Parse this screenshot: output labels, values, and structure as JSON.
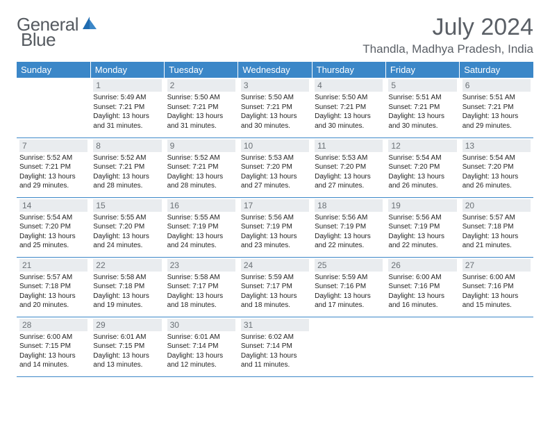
{
  "brand": {
    "name_a": "General",
    "name_b": "Blue"
  },
  "month_title": "July 2024",
  "location": "Thandla, Madhya Pradesh, India",
  "headers": [
    "Sunday",
    "Monday",
    "Tuesday",
    "Wednesday",
    "Thursday",
    "Friday",
    "Saturday"
  ],
  "header_bg": "#3b87c8",
  "weeks": [
    [
      null,
      {
        "day": "1",
        "sunrise": "5:49 AM",
        "sunset": "7:21 PM",
        "daylight": "13 hours and 31 minutes."
      },
      {
        "day": "2",
        "sunrise": "5:50 AM",
        "sunset": "7:21 PM",
        "daylight": "13 hours and 31 minutes."
      },
      {
        "day": "3",
        "sunrise": "5:50 AM",
        "sunset": "7:21 PM",
        "daylight": "13 hours and 30 minutes."
      },
      {
        "day": "4",
        "sunrise": "5:50 AM",
        "sunset": "7:21 PM",
        "daylight": "13 hours and 30 minutes."
      },
      {
        "day": "5",
        "sunrise": "5:51 AM",
        "sunset": "7:21 PM",
        "daylight": "13 hours and 30 minutes."
      },
      {
        "day": "6",
        "sunrise": "5:51 AM",
        "sunset": "7:21 PM",
        "daylight": "13 hours and 29 minutes."
      }
    ],
    [
      {
        "day": "7",
        "sunrise": "5:52 AM",
        "sunset": "7:21 PM",
        "daylight": "13 hours and 29 minutes."
      },
      {
        "day": "8",
        "sunrise": "5:52 AM",
        "sunset": "7:21 PM",
        "daylight": "13 hours and 28 minutes."
      },
      {
        "day": "9",
        "sunrise": "5:52 AM",
        "sunset": "7:21 PM",
        "daylight": "13 hours and 28 minutes."
      },
      {
        "day": "10",
        "sunrise": "5:53 AM",
        "sunset": "7:20 PM",
        "daylight": "13 hours and 27 minutes."
      },
      {
        "day": "11",
        "sunrise": "5:53 AM",
        "sunset": "7:20 PM",
        "daylight": "13 hours and 27 minutes."
      },
      {
        "day": "12",
        "sunrise": "5:54 AM",
        "sunset": "7:20 PM",
        "daylight": "13 hours and 26 minutes."
      },
      {
        "day": "13",
        "sunrise": "5:54 AM",
        "sunset": "7:20 PM",
        "daylight": "13 hours and 26 minutes."
      }
    ],
    [
      {
        "day": "14",
        "sunrise": "5:54 AM",
        "sunset": "7:20 PM",
        "daylight": "13 hours and 25 minutes."
      },
      {
        "day": "15",
        "sunrise": "5:55 AM",
        "sunset": "7:20 PM",
        "daylight": "13 hours and 24 minutes."
      },
      {
        "day": "16",
        "sunrise": "5:55 AM",
        "sunset": "7:19 PM",
        "daylight": "13 hours and 24 minutes."
      },
      {
        "day": "17",
        "sunrise": "5:56 AM",
        "sunset": "7:19 PM",
        "daylight": "13 hours and 23 minutes."
      },
      {
        "day": "18",
        "sunrise": "5:56 AM",
        "sunset": "7:19 PM",
        "daylight": "13 hours and 22 minutes."
      },
      {
        "day": "19",
        "sunrise": "5:56 AM",
        "sunset": "7:19 PM",
        "daylight": "13 hours and 22 minutes."
      },
      {
        "day": "20",
        "sunrise": "5:57 AM",
        "sunset": "7:18 PM",
        "daylight": "13 hours and 21 minutes."
      }
    ],
    [
      {
        "day": "21",
        "sunrise": "5:57 AM",
        "sunset": "7:18 PM",
        "daylight": "13 hours and 20 minutes."
      },
      {
        "day": "22",
        "sunrise": "5:58 AM",
        "sunset": "7:18 PM",
        "daylight": "13 hours and 19 minutes."
      },
      {
        "day": "23",
        "sunrise": "5:58 AM",
        "sunset": "7:17 PM",
        "daylight": "13 hours and 18 minutes."
      },
      {
        "day": "24",
        "sunrise": "5:59 AM",
        "sunset": "7:17 PM",
        "daylight": "13 hours and 18 minutes."
      },
      {
        "day": "25",
        "sunrise": "5:59 AM",
        "sunset": "7:16 PM",
        "daylight": "13 hours and 17 minutes."
      },
      {
        "day": "26",
        "sunrise": "6:00 AM",
        "sunset": "7:16 PM",
        "daylight": "13 hours and 16 minutes."
      },
      {
        "day": "27",
        "sunrise": "6:00 AM",
        "sunset": "7:16 PM",
        "daylight": "13 hours and 15 minutes."
      }
    ],
    [
      {
        "day": "28",
        "sunrise": "6:00 AM",
        "sunset": "7:15 PM",
        "daylight": "13 hours and 14 minutes."
      },
      {
        "day": "29",
        "sunrise": "6:01 AM",
        "sunset": "7:15 PM",
        "daylight": "13 hours and 13 minutes."
      },
      {
        "day": "30",
        "sunrise": "6:01 AM",
        "sunset": "7:14 PM",
        "daylight": "13 hours and 12 minutes."
      },
      {
        "day": "31",
        "sunrise": "6:02 AM",
        "sunset": "7:14 PM",
        "daylight": "13 hours and 11 minutes."
      },
      null,
      null,
      null
    ]
  ],
  "labels": {
    "sunrise": "Sunrise:",
    "sunset": "Sunset:",
    "daylight": "Daylight:"
  }
}
